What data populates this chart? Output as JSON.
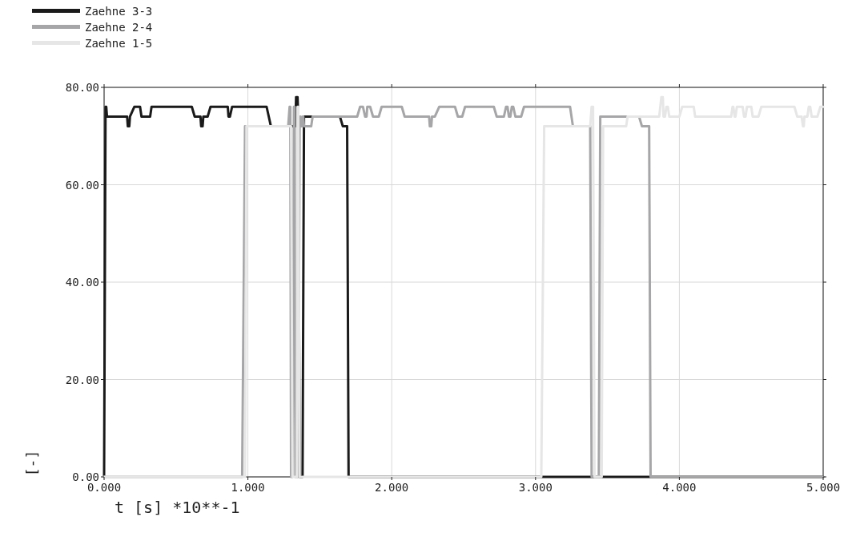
{
  "chart_data": {
    "type": "line",
    "xlabel": "t [s] *10**-1",
    "ylabel": "[-]",
    "xlim": [
      0,
      5
    ],
    "ylim": [
      0,
      80
    ],
    "xticks": [
      {
        "value": 0,
        "label": "0.000"
      },
      {
        "value": 1,
        "label": "1.000"
      },
      {
        "value": 2,
        "label": "2.000"
      },
      {
        "value": 3,
        "label": "3.000"
      },
      {
        "value": 4,
        "label": "4.000"
      },
      {
        "value": 5,
        "label": "5.000"
      }
    ],
    "yticks": [
      {
        "value": 0,
        "label": "0.00"
      },
      {
        "value": 20,
        "label": "20.00"
      },
      {
        "value": 40,
        "label": "40.00"
      },
      {
        "value": 60,
        "label": "60.00"
      },
      {
        "value": 80,
        "label": "80.00"
      }
    ],
    "grid": true,
    "legend": "top left",
    "line_style": "solid",
    "marker": "none",
    "series": [
      {
        "name": "Zaehne 3-3",
        "color": "#1a1a1a",
        "x": [
          0,
          0.01,
          0.015,
          0.02,
          0.16,
          0.165,
          0.175,
          0.18,
          0.21,
          0.25,
          0.26,
          0.32,
          0.33,
          0.61,
          0.63,
          0.67,
          0.675,
          0.685,
          0.69,
          0.72,
          0.74,
          0.86,
          0.865,
          0.875,
          0.89,
          1.13,
          1.16,
          1.33,
          1.335,
          1.345,
          1.35,
          1.36,
          1.38,
          1.39,
          1.64,
          1.66,
          1.69,
          1.7,
          5
        ],
        "values": [
          0,
          76,
          76,
          74,
          74,
          72,
          72,
          74,
          76,
          76,
          74,
          74,
          76,
          76,
          74,
          74,
          72,
          72,
          74,
          74,
          76,
          76,
          74,
          74,
          76,
          76,
          72,
          72,
          78,
          78,
          74,
          0,
          0,
          74,
          74,
          72,
          72,
          0,
          0
        ]
      },
      {
        "name": "Zaehne 2-4",
        "color": "#a6a6a8",
        "x": [
          0,
          0.96,
          0.98,
          1.28,
          1.29,
          1.295,
          1.3,
          1.31,
          1.32,
          1.325,
          1.33,
          1.35,
          1.36,
          1.365,
          1.37,
          1.375,
          1.38,
          1.385,
          1.39,
          1.44,
          1.45,
          1.76,
          1.78,
          1.8,
          1.815,
          1.825,
          1.83,
          1.85,
          1.87,
          1.91,
          1.93,
          2.07,
          2.09,
          2.26,
          2.265,
          2.275,
          2.28,
          2.3,
          2.33,
          2.44,
          2.46,
          2.49,
          2.51,
          2.71,
          2.73,
          2.78,
          2.795,
          2.805,
          2.815,
          2.825,
          2.835,
          2.845,
          2.86,
          2.9,
          2.92,
          3.24,
          3.26,
          3.38,
          3.39,
          3.44,
          3.45,
          3.72,
          3.74,
          3.79,
          3.8,
          5
        ],
        "values": [
          0,
          0,
          72,
          72,
          76,
          76,
          0,
          0,
          76,
          76,
          0,
          0,
          74,
          74,
          72,
          72,
          74,
          74,
          72,
          72,
          74,
          74,
          76,
          76,
          74,
          74,
          76,
          76,
          74,
          74,
          76,
          76,
          74,
          74,
          72,
          72,
          74,
          74,
          76,
          76,
          74,
          74,
          76,
          76,
          74,
          74,
          76,
          76,
          74,
          74,
          76,
          76,
          74,
          74,
          76,
          76,
          72,
          72,
          0,
          0,
          74,
          74,
          72,
          72,
          0,
          0
        ]
      },
      {
        "name": "Zaehne 1-5",
        "color": "#e6e6e6",
        "x": [
          0,
          0.98,
          0.99,
          1.3,
          1.31,
          1.34,
          1.345,
          1.35,
          1.36,
          3.04,
          3.06,
          3.38,
          3.39,
          3.4,
          3.41,
          3.46,
          3.47,
          3.63,
          3.64,
          3.86,
          3.875,
          3.885,
          3.89,
          3.9,
          3.91,
          3.92,
          3.93,
          4,
          4.02,
          4.1,
          4.11,
          4.36,
          4.37,
          4.375,
          4.385,
          4.39,
          4.4,
          4.44,
          4.45,
          4.46,
          4.47,
          4.5,
          4.51,
          4.55,
          4.57,
          4.8,
          4.82,
          4.85,
          4.86,
          4.865,
          4.87,
          4.89,
          4.9,
          4.91,
          4.92,
          4.96,
          4.98,
          5
        ],
        "values": [
          0,
          0,
          72,
          72,
          0,
          0,
          76,
          76,
          0,
          0,
          72,
          72,
          76,
          76,
          0,
          0,
          72,
          72,
          74,
          74,
          78,
          78,
          74,
          74,
          76,
          76,
          74,
          74,
          76,
          76,
          74,
          74,
          76,
          76,
          74,
          74,
          76,
          76,
          74,
          74,
          76,
          76,
          74,
          74,
          76,
          76,
          74,
          74,
          72,
          72,
          74,
          74,
          76,
          76,
          74,
          74,
          76,
          76
        ]
      }
    ]
  }
}
